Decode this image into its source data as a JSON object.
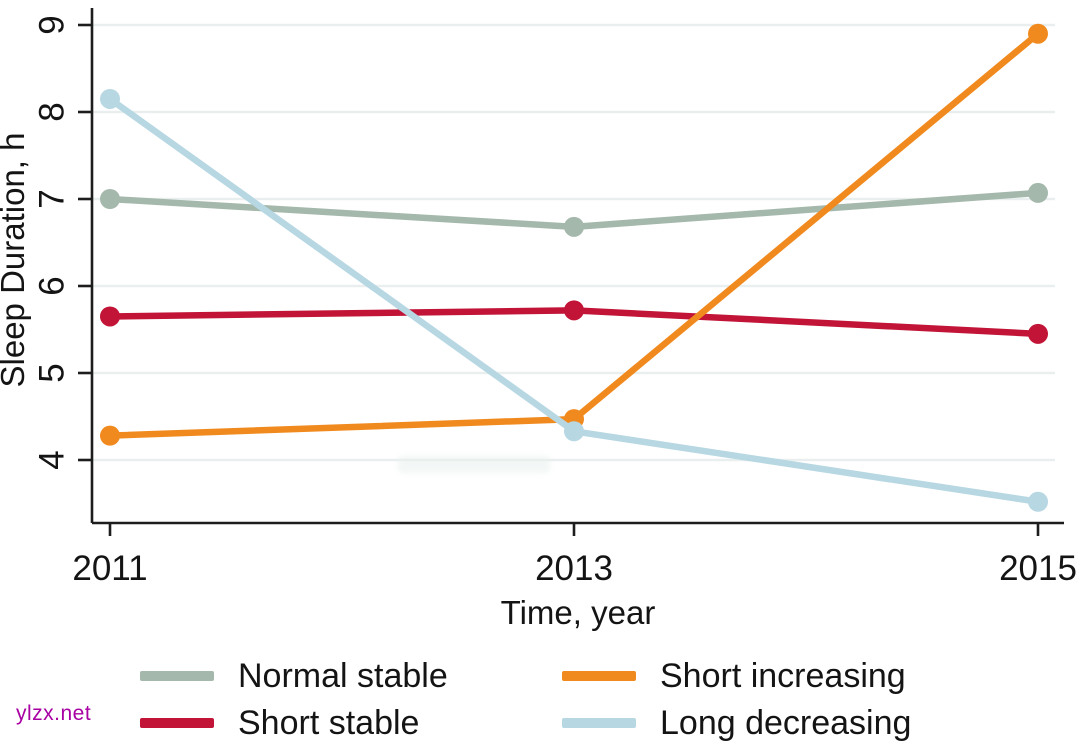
{
  "watermark": {
    "text": "ylzx.net",
    "color": "#a800a3"
  },
  "chart_data": {
    "type": "line",
    "x": [
      2011,
      2013,
      2015
    ],
    "x_tick_labels": [
      "2011",
      "2013",
      "2015"
    ],
    "series": [
      {
        "name": "Normal stable",
        "color": "#a4b8ac",
        "values": [
          7.0,
          6.68,
          7.07
        ]
      },
      {
        "name": "Short stable",
        "color": "#c11437",
        "values": [
          5.65,
          5.72,
          5.45
        ]
      },
      {
        "name": "Short increasing",
        "color": "#f18a1e",
        "values": [
          4.28,
          4.47,
          8.9
        ]
      },
      {
        "name": "Long decreasing",
        "color": "#b7d7e3",
        "values": [
          8.15,
          4.33,
          3.52
        ]
      }
    ],
    "title": "",
    "xlabel": "Time, year",
    "ylabel": "Sleep Duration, h",
    "y_ticks": [
      9,
      8,
      7,
      6,
      5,
      4
    ],
    "ylim": [
      3.28,
      9.2
    ],
    "xlim": [
      2011,
      2015
    ],
    "grid": true,
    "axis_color": "#1d1d1d",
    "grid_color": "#e9efee",
    "legend_position": "bottom",
    "legend_order": [
      0,
      2,
      1,
      3
    ]
  }
}
